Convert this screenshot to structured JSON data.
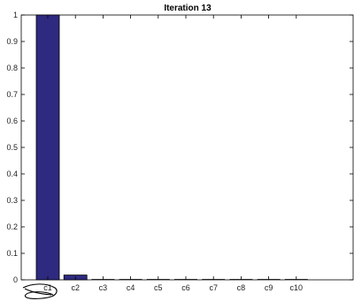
{
  "chart_data": {
    "type": "bar",
    "title": "Iteration 13",
    "xlabel": "",
    "ylabel": "",
    "categories": [
      "c1",
      "c2",
      "c3",
      "c4",
      "c5",
      "c6",
      "c7",
      "c8",
      "c9",
      "c10"
    ],
    "values": [
      1.0,
      0.018,
      0,
      0,
      0,
      0,
      0,
      0,
      0,
      0
    ],
    "ylim": [
      0,
      1
    ],
    "yticks": [
      "0",
      "0.1",
      "0.2",
      "0.3",
      "0.4",
      "0.5",
      "0.6",
      "0.7",
      "0.8",
      "0.9",
      "1"
    ],
    "grid": false,
    "bar_color": "#2e2a80",
    "bar_edge_color": "#000000"
  },
  "icons": {
    "below_axis": "hand-drawn-boat-icon"
  }
}
